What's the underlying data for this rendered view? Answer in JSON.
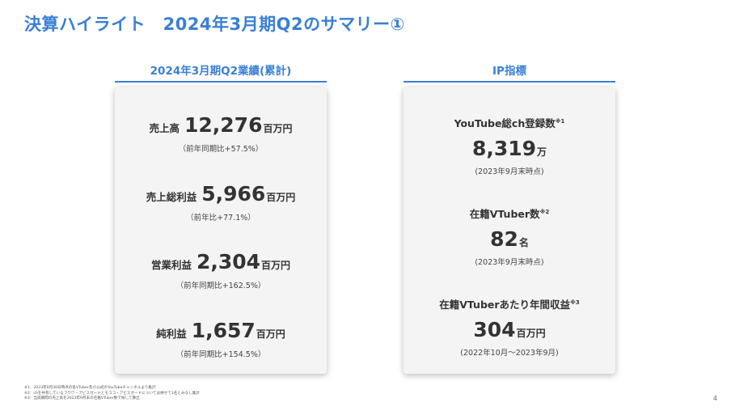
{
  "title": "決算ハイライト　2024年3月期Q2のサマリー①",
  "left": {
    "header": "2024年3月期Q2業績(累計)",
    "metrics": [
      {
        "label": "売上高",
        "value": "12,276",
        "unit": "百万円",
        "sub": "（前年同期比+57.5%）"
      },
      {
        "label": "売上総利益",
        "value": "5,966",
        "unit": "百万円",
        "sub": "（前年比+77.1%）"
      },
      {
        "label": "営業利益",
        "value": "2,304",
        "unit": "百万円",
        "sub": "（前年同期比+162.5%）"
      },
      {
        "label": "純利益",
        "value": "1,657",
        "unit": "百万円",
        "sub": "（前年同期比+154.5%）"
      }
    ]
  },
  "right": {
    "header": "IP指標",
    "metrics": [
      {
        "label": "YouTube総ch登録数",
        "note": "※1",
        "value": "8,319",
        "unit": "万",
        "sub": "(2023年9月末時点)"
      },
      {
        "label": "在籍VTuber数",
        "note": "※2",
        "value": "82",
        "unit": "名",
        "sub": "(2023年9月末時点)"
      },
      {
        "label": "在籍VTuberあたり年間収益",
        "note": "※3",
        "value": "304",
        "unit": "百万円",
        "sub": "(2022年10月～2023年9月)"
      }
    ]
  },
  "footnotes": [
    "※1：2023年9月30日時点の各VTuber及び公式のYouTubeチャンネルより集計",
    "※2：chを共有しているフワワ・アビスガードとモココ・アビスガードについては併せて1名とみなし集計",
    "※3：当該期間の売上高を2023年9月末の在籍VTuber数で除して算出"
  ],
  "page_number": "4"
}
